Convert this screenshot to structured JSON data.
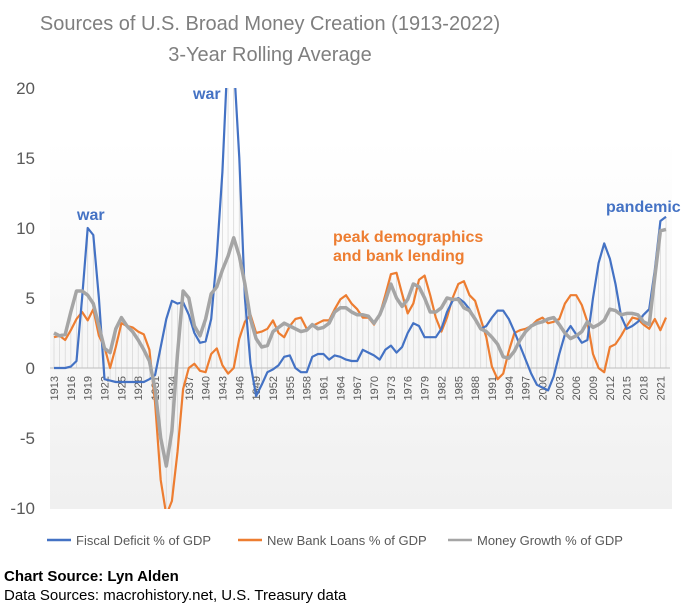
{
  "chart_data": {
    "type": "line",
    "title": "Sources of U.S. Broad Money Creation (1913-2022)",
    "subtitle": "3-Year Rolling Average",
    "xlabel": "",
    "ylabel": "",
    "x_start": 1913,
    "x_end": 2022,
    "x_tick_step": 3,
    "ylim": [
      -10,
      20
    ],
    "y_ticks": [
      -10,
      -5,
      0,
      5,
      10,
      15,
      20
    ],
    "grid": "vertical lines per year",
    "legend_position": "bottom",
    "series": [
      {
        "name": "Fiscal Deficit % of GDP",
        "color": "#4472c4",
        "values": [
          0,
          0,
          0,
          0.1,
          0.5,
          5,
          10,
          9.5,
          5,
          -0.8,
          -0.9,
          -1,
          -1,
          -1,
          -1,
          -1,
          -1,
          -0.8,
          -0.5,
          1.5,
          3.5,
          4.8,
          4.6,
          4.7,
          3.8,
          2.5,
          1.8,
          1.9,
          3.5,
          8,
          14,
          23,
          22,
          15,
          5,
          0.3,
          -2,
          -1.2,
          -0.3,
          -0.1,
          0.2,
          0.8,
          0.9,
          0,
          -0.3,
          -0.3,
          0.8,
          1,
          1,
          0.6,
          0.9,
          0.8,
          0.6,
          0.5,
          0.5,
          1.3,
          1.1,
          0.9,
          0.6,
          1.3,
          1.6,
          1.1,
          1.5,
          2.5,
          3.2,
          3,
          2.2,
          2.2,
          2.2,
          2.8,
          4,
          4.8,
          5,
          4.7,
          4.2,
          3.5,
          2.8,
          3,
          3.6,
          4.1,
          4.1,
          3.5,
          2.6,
          1.6,
          0.6,
          -0.4,
          -1.2,
          -1.4,
          -1.6,
          -0.6,
          1,
          2.4,
          3,
          2.4,
          1.8,
          2,
          5,
          7.5,
          8.9,
          7.8,
          6,
          3.7,
          2.8,
          3,
          3.3,
          3.8,
          4.2,
          7,
          10.5,
          10.8
        ]
      },
      {
        "name": "New Bank Loans % of GDP",
        "color": "#ed7d31",
        "values": [
          2.2,
          2.3,
          2,
          2.7,
          3.5,
          4,
          3.4,
          4.2,
          2.3,
          1.5,
          0,
          1.5,
          3.2,
          3,
          2.9,
          2.6,
          2.4,
          1.3,
          -2.5,
          -8,
          -10.5,
          -9.5,
          -6,
          -1.5,
          0,
          0.3,
          -0.2,
          -0.3,
          1,
          1.4,
          0.2,
          -0.4,
          0,
          2.1,
          3.3,
          3.8,
          2.5,
          2.6,
          2.8,
          3.4,
          2.5,
          2.2,
          3,
          3.5,
          3.6,
          2.8,
          3,
          3.2,
          3.4,
          3.4,
          4.2,
          4.9,
          5.2,
          4.6,
          4.2,
          3.6,
          3.6,
          3.1,
          3.8,
          5.2,
          6.7,
          6.8,
          5.3,
          3.9,
          4.6,
          6.3,
          6.6,
          5.2,
          3.6,
          2.6,
          3.6,
          5,
          6,
          6.2,
          5.2,
          4.8,
          3.5,
          2.2,
          0.1,
          -0.8,
          -0.4,
          1.2,
          2.5,
          2.7,
          2.8,
          3,
          3.4,
          3.6,
          3.2,
          3.3,
          3.5,
          4.6,
          5.2,
          5.2,
          4.5,
          3.3,
          1,
          0,
          -0.3,
          1.5,
          1.7,
          2.3,
          3,
          3.6,
          3.5,
          3.1,
          2.8,
          3.5,
          2.7,
          3.6
        ]
      },
      {
        "name": "Money Growth % of GDP",
        "color": "#a5a5a5",
        "values": [
          2.5,
          2.3,
          2.4,
          4,
          5.5,
          5.5,
          5.2,
          4.6,
          3,
          1.4,
          1.1,
          2.8,
          3.6,
          3,
          2.6,
          2,
          1.3,
          0.5,
          -1.5,
          -5,
          -7,
          -4.5,
          1,
          5.5,
          5,
          3,
          2.3,
          3.5,
          5.3,
          5.8,
          7,
          8,
          9.3,
          8,
          6,
          3.5,
          2.1,
          1.5,
          1.6,
          2.6,
          2.9,
          3.2,
          3,
          2.8,
          2.6,
          2.7,
          3.1,
          2.8,
          2.9,
          3.2,
          4,
          4.3,
          4.3,
          4,
          3.8,
          3.8,
          3.7,
          3.2,
          3.8,
          4.8,
          6,
          5,
          4.4,
          4.9,
          6,
          5.8,
          5,
          4,
          4,
          4.3,
          5,
          4.9,
          4.9,
          4.3,
          4.1,
          3.5,
          2.8,
          2.6,
          2.2,
          1.7,
          0.8,
          0.7,
          1.2,
          2,
          2.6,
          3,
          3.2,
          3.3,
          3.5,
          3.6,
          3.1,
          2.5,
          2.1,
          2.3,
          2.6,
          3.3,
          2.9,
          3.1,
          3.4,
          4.2,
          4.1,
          3.8,
          3.9,
          3.9,
          3.8,
          3.3,
          3.1,
          6.5,
          9.8,
          9.9
        ]
      }
    ],
    "annotations": [
      {
        "text": "war",
        "color": "#4472c4",
        "year": 1919
      },
      {
        "text": "war",
        "color": "#4472c4",
        "year": 1944
      },
      {
        "text": "peak demographics",
        "color": "#ed7d31",
        "year": 1970
      },
      {
        "text": "and bank lending",
        "color": "#ed7d31",
        "year": 1970
      },
      {
        "text": "pandemic",
        "color": "#4472c4",
        "year": 2020
      }
    ]
  },
  "footer": {
    "chart_source": "Chart Source: Lyn Alden",
    "data_sources": "Data Sources: macrohistory.net, U.S. Treasury data"
  }
}
